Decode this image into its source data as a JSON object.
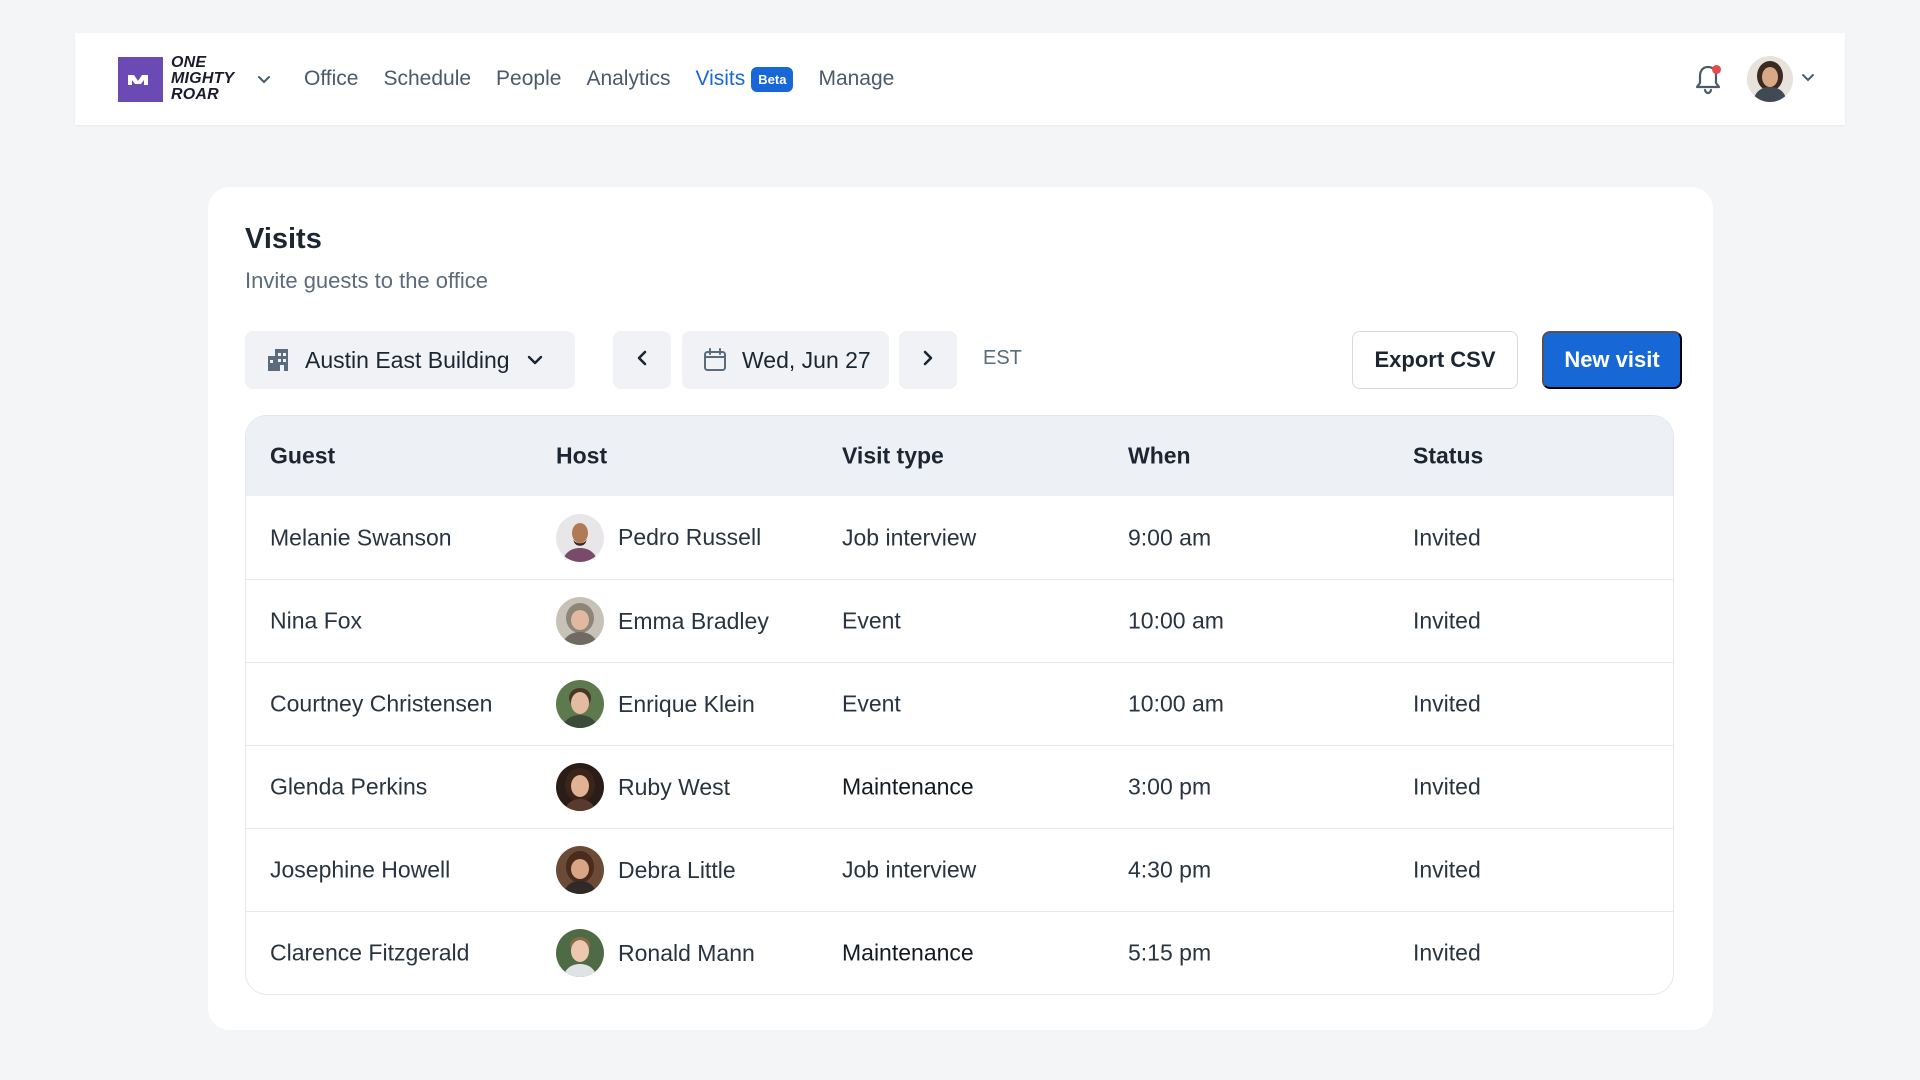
{
  "brand": {
    "logo_lines": [
      "ONE",
      "MIGHTY",
      "ROAR"
    ],
    "accent": "#6b4bb3"
  },
  "nav": {
    "items": [
      {
        "label": "Office"
      },
      {
        "label": "Schedule"
      },
      {
        "label": "People"
      },
      {
        "label": "Analytics"
      },
      {
        "label": "Visits",
        "badge": "Beta",
        "active": true
      },
      {
        "label": "Manage"
      }
    ],
    "active_color": "#1767d6"
  },
  "header": {
    "notifications_icon": "bell-icon",
    "has_unread": true
  },
  "page": {
    "title": "Visits",
    "subtitle": "Invite guests to the office"
  },
  "toolbar": {
    "building": "Austin East Building",
    "date": "Wed, Jun 27",
    "timezone": "EST",
    "export_label": "Export CSV",
    "new_label": "New visit"
  },
  "table": {
    "headers": [
      "Guest",
      "Host",
      "Visit type",
      "When",
      "Status"
    ],
    "rows": [
      {
        "guest": "Melanie Swanson",
        "host": "Pedro Russell",
        "type": "Job interview",
        "when": "9:00 am",
        "status": "Invited"
      },
      {
        "guest": "Nina Fox",
        "host": "Emma Bradley",
        "type": "Event",
        "when": "10:00 am",
        "status": "Invited"
      },
      {
        "guest": "Courtney Christensen",
        "host": "Enrique Klein",
        "type": "Event",
        "when": "10:00 am",
        "status": "Invited"
      },
      {
        "guest": "Glenda Perkins",
        "host": "Ruby West",
        "type": "Maintenance",
        "when": "3:00 pm",
        "status": "Invited"
      },
      {
        "guest": "Josephine Howell",
        "host": "Debra Little",
        "type": "Job interview",
        "when": "4:30 pm",
        "status": "Invited"
      },
      {
        "guest": "Clarence Fitzgerald",
        "host": "Ronald Mann",
        "type": "Maintenance",
        "when": "5:15 pm",
        "status": "Invited"
      }
    ]
  }
}
